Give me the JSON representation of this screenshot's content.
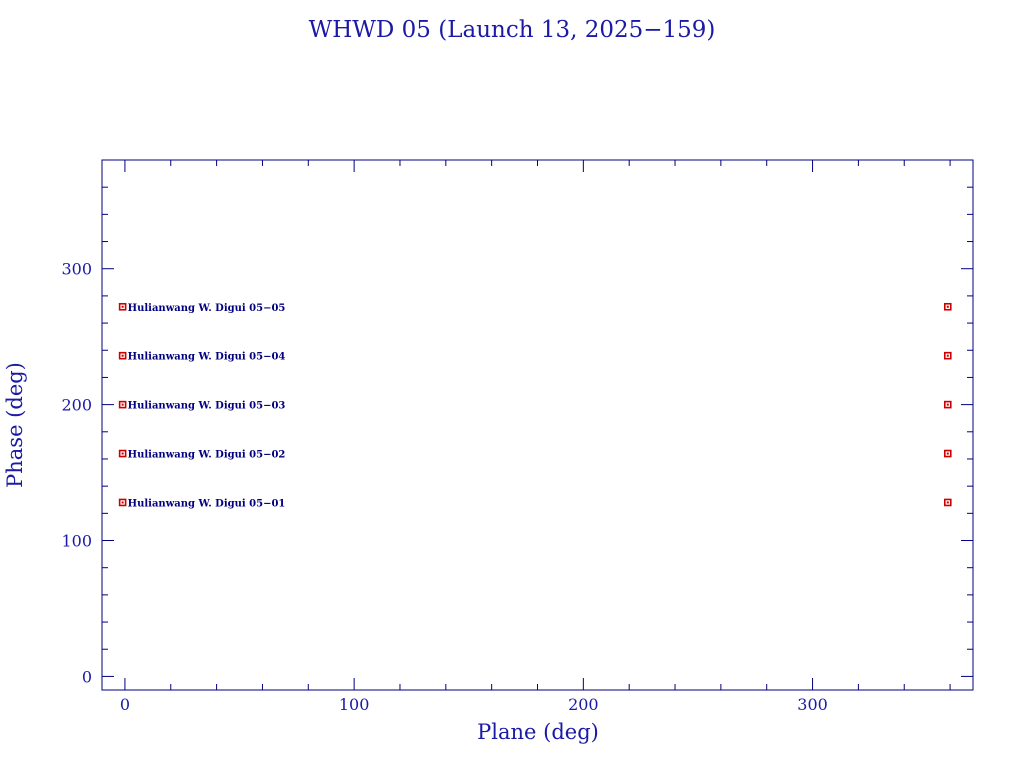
{
  "colors": {
    "axis": "#000080",
    "text": "#1a1aa6",
    "marker": "#cc0000"
  },
  "chart_data": {
    "type": "scatter",
    "title": "WHWD 05 (Launch 13, 2025−159)",
    "xlabel": "Plane (deg)",
    "ylabel": "Phase (deg)",
    "xlim": [
      -10,
      370
    ],
    "ylim": [
      -10,
      380
    ],
    "x_ticks": [
      0,
      100,
      200,
      300
    ],
    "x_tick_labels": [
      "0",
      "100",
      "200",
      "300"
    ],
    "y_ticks": [
      0,
      100,
      200,
      300
    ],
    "y_tick_labels": [
      "0",
      "100",
      "200",
      "300"
    ],
    "x_minor_step": 20,
    "y_minor_step": 20,
    "grid": false,
    "points": [
      {
        "x": -1,
        "y": 272,
        "label": "Hulianwang W. Digui 05−05"
      },
      {
        "x": -1,
        "y": 236,
        "label": "Hulianwang W. Digui 05−04"
      },
      {
        "x": -1,
        "y": 200,
        "label": "Hulianwang W. Digui 05−03"
      },
      {
        "x": -1,
        "y": 164,
        "label": "Hulianwang W. Digui 05−02"
      },
      {
        "x": -1,
        "y": 128,
        "label": "Hulianwang W. Digui 05−01"
      },
      {
        "x": 359,
        "y": 272
      },
      {
        "x": 359,
        "y": 236
      },
      {
        "x": 359,
        "y": 200
      },
      {
        "x": 359,
        "y": 164
      },
      {
        "x": 359,
        "y": 128
      }
    ]
  }
}
